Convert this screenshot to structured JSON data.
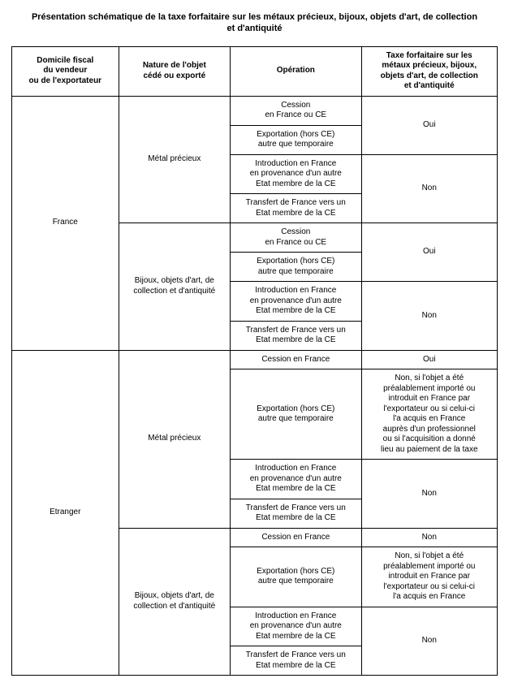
{
  "title_l1": "Présentation schématique de la taxe forfaitaire sur les métaux précieux, bijoux, objets d'art, de collection",
  "title_l2": "et d'antiquité",
  "columns": {
    "c1_l1": "Domicile fiscal",
    "c1_l2": "du vendeur",
    "c1_l3": "ou de l'exportateur",
    "c2_l1": "Nature de l'objet",
    "c2_l2": "cédé ou exporté",
    "c3": "Opération",
    "c4_l1": "Taxe forfaitaire sur les",
    "c4_l2": "métaux précieux, bijoux,",
    "c4_l3": "objets d'art, de collection",
    "c4_l4": "et d'antiquité"
  },
  "domicile": {
    "france": "France",
    "etranger": "Etranger"
  },
  "nature": {
    "mp": "Métal précieux",
    "bijoux_l1": "Bijoux, objets d'art, de",
    "bijoux_l2": "collection et d'antiquité"
  },
  "op": {
    "cession_fce_l1": "Cession",
    "cession_fce_l2": "en France ou CE",
    "export_l1": "Exportation (hors CE)",
    "export_l2": "autre que temporaire",
    "intro_l1": "Introduction en France",
    "intro_l2": "en provenance d'un autre",
    "intro_l3": "Etat membre de la CE",
    "transf_l1": "Transfert de France vers un",
    "transf_l2": "Etat membre de la CE",
    "cession_fr": "Cession en France"
  },
  "tax": {
    "oui": "Oui",
    "non": "Non",
    "etr_mp_l1": "Non, si l'objet a été",
    "etr_mp_l2": "préalablement importé ou",
    "etr_mp_l3": "introduit en France par",
    "etr_mp_l4": "l'exportateur ou si celui-ci",
    "etr_mp_l5": "l'a acquis en France",
    "etr_mp_l6": "auprès d'un professionnel",
    "etr_mp_l7": "ou si l'acquisition a donné",
    "etr_mp_l8": "lieu au paiement de la taxe",
    "etr_b_l1": "Non, si l'objet a été",
    "etr_b_l2": "préalablement importé ou",
    "etr_b_l3": "introduit en France par",
    "etr_b_l4": "l'exportateur ou si celui-ci",
    "etr_b_l5": "l'a acquis en France"
  }
}
